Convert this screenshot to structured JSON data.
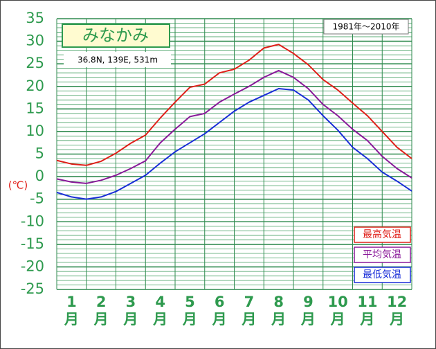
{
  "chart_data": {
    "type": "line",
    "title": "みなかみ",
    "subtitle": "36.8N,  139E,  531m",
    "period": "1981年～2010年",
    "ylabel": "(℃)",
    "categories": [
      "1月",
      "2月",
      "3月",
      "4月",
      "5月",
      "6月",
      "7月",
      "8月",
      "9月",
      "10月",
      "11月",
      "12月"
    ],
    "x": [
      0,
      0.5,
      1,
      1.5,
      2,
      2.5,
      3,
      3.5,
      4,
      4.5,
      5,
      5.5,
      6,
      6.5,
      7,
      7.5,
      8,
      8.5,
      9,
      9.5,
      10,
      10.5,
      11,
      11.5,
      12
    ],
    "xlim": [
      0,
      12
    ],
    "series": [
      {
        "name": "最高気温",
        "color": "#e0201a",
        "values": [
          3.6,
          2.8,
          2.5,
          3.4,
          5.2,
          7.4,
          9.2,
          13,
          16.5,
          19.8,
          20.5,
          23,
          23.8,
          25.8,
          28.5,
          29.3,
          27.3,
          24.8,
          21.5,
          19.2,
          16.3,
          13.5,
          10,
          6.5,
          4
        ]
      },
      {
        "name": "平均気温",
        "color": "#8a1a9a",
        "values": [
          -0.5,
          -1.2,
          -1.5,
          -0.8,
          0.3,
          1.8,
          3.5,
          7.5,
          10.5,
          13.3,
          14,
          16.5,
          18.3,
          20,
          22,
          23.5,
          22,
          19.5,
          16,
          13.5,
          10.5,
          8,
          4.5,
          1.8,
          -0.3
        ]
      },
      {
        "name": "最低気温",
        "color": "#1a2ed8",
        "values": [
          -3.5,
          -4.5,
          -5,
          -4.5,
          -3.3,
          -1.5,
          0.3,
          3,
          5.5,
          7.5,
          9.5,
          12,
          14.5,
          16.5,
          18,
          19.5,
          19.2,
          17,
          13.5,
          10.3,
          6.5,
          4,
          1,
          -1,
          -3.2
        ]
      }
    ],
    "ylim": [
      -25,
      35
    ],
    "yticks": [
      -25,
      -20,
      -15,
      -10,
      -5,
      0,
      5,
      10,
      15,
      20,
      25,
      30,
      35
    ],
    "minor_yticks": [
      -25,
      -24,
      -23,
      -22,
      -21,
      -20,
      -19,
      -18,
      -17,
      -16,
      -15,
      -14,
      -13,
      -12,
      -11,
      -10,
      -9,
      -8,
      -7,
      -6,
      -5,
      -4,
      -3,
      -2,
      -1,
      0,
      1,
      2,
      3,
      4,
      5,
      6,
      7,
      8,
      9,
      10,
      11,
      12,
      13,
      14,
      15,
      16,
      17,
      18,
      19,
      20,
      21,
      22,
      23,
      24,
      25,
      26,
      27,
      28,
      29,
      30,
      31,
      32,
      33,
      34,
      35
    ],
    "grid": true,
    "legend": "lower right"
  }
}
